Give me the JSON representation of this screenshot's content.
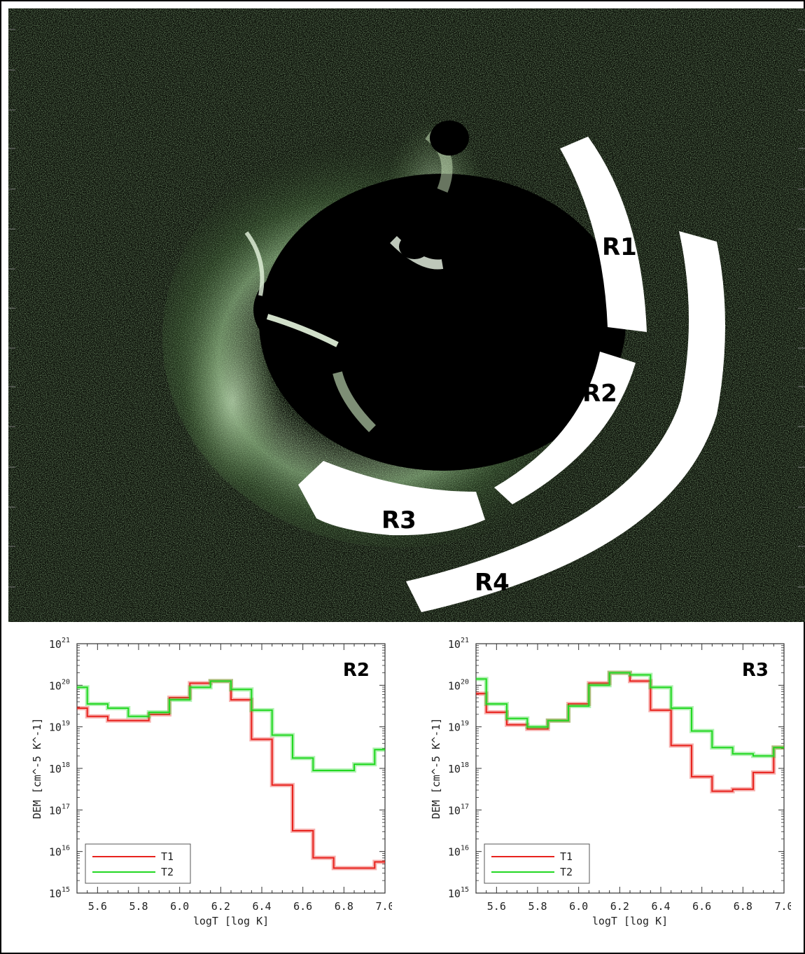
{
  "image_panel": {
    "regions": [
      {
        "label": "R1"
      },
      {
        "label": "R2"
      },
      {
        "label": "R3"
      },
      {
        "label": "R4"
      }
    ]
  },
  "chart_data": [
    {
      "type": "line",
      "step": true,
      "panel_label": "R2",
      "xlabel": "logT [log K]",
      "ylabel": "DEM [cm^-5 K^-1]",
      "xlim": [
        5.5,
        7.0
      ],
      "ylog": true,
      "ylim_exp": [
        15,
        21
      ],
      "xticks": [
        "5.6",
        "5.8",
        "6.0",
        "6.2",
        "6.4",
        "6.6",
        "6.8",
        "7.0"
      ],
      "yticks": [
        "15",
        "16",
        "17",
        "18",
        "19",
        "20",
        "21"
      ],
      "ytick_base": "10",
      "legend": "bottom-left",
      "x": [
        5.5,
        5.6,
        5.8,
        6.0,
        6.2,
        6.4,
        6.6,
        6.8,
        7.0
      ],
      "bin_edges": [
        5.5,
        5.55,
        5.65,
        5.75,
        5.85,
        5.95,
        6.05,
        6.15,
        6.25,
        6.35,
        6.45,
        6.55,
        6.65,
        6.75,
        6.85,
        6.95,
        7.0
      ],
      "series": [
        {
          "name": "T1",
          "color": "#e8231e",
          "log_values": [
            19.45,
            19.25,
            19.15,
            19.15,
            19.3,
            19.7,
            20.05,
            20.1,
            19.65,
            18.7,
            17.6,
            16.5,
            15.85,
            15.6,
            15.6,
            15.75
          ]
        },
        {
          "name": "T2",
          "color": "#22d822",
          "log_values": [
            19.95,
            19.55,
            19.45,
            19.25,
            19.35,
            19.65,
            19.95,
            20.1,
            19.9,
            19.4,
            18.8,
            18.25,
            17.95,
            17.95,
            18.1,
            18.45
          ]
        }
      ]
    },
    {
      "type": "line",
      "step": true,
      "panel_label": "R3",
      "xlabel": "logT [log K]",
      "ylabel": "DEM [cm^-5 K^-1]",
      "xlim": [
        5.5,
        7.0
      ],
      "ylog": true,
      "ylim_exp": [
        15,
        21
      ],
      "xticks": [
        "5.6",
        "5.8",
        "6.0",
        "6.2",
        "6.4",
        "6.6",
        "6.8",
        "7.0"
      ],
      "yticks": [
        "15",
        "16",
        "17",
        "18",
        "19",
        "20",
        "21"
      ],
      "ytick_base": "10",
      "legend": "bottom-left",
      "x": [
        5.5,
        5.6,
        5.8,
        6.0,
        6.2,
        6.4,
        6.6,
        6.8,
        7.0
      ],
      "bin_edges": [
        5.5,
        5.55,
        5.65,
        5.75,
        5.85,
        5.95,
        6.05,
        6.15,
        6.25,
        6.35,
        6.45,
        6.55,
        6.65,
        6.75,
        6.85,
        6.95,
        7.0
      ],
      "series": [
        {
          "name": "T1",
          "color": "#e8231e",
          "log_values": [
            19.8,
            19.35,
            19.05,
            18.95,
            19.15,
            19.55,
            20.05,
            20.3,
            20.1,
            19.4,
            18.55,
            17.8,
            17.45,
            17.5,
            17.9,
            18.5
          ]
        },
        {
          "name": "T2",
          "color": "#22d822",
          "log_values": [
            20.15,
            19.55,
            19.2,
            19.0,
            19.15,
            19.5,
            20.0,
            20.3,
            20.25,
            19.95,
            19.45,
            18.9,
            18.5,
            18.35,
            18.3,
            18.5
          ]
        }
      ]
    }
  ]
}
